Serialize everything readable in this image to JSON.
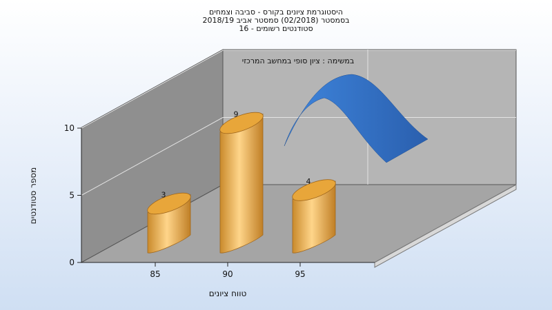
{
  "header": {
    "title_line1": "היסטוגרמת ציונים בקורס - סביבה וצמחים",
    "title_line2": "בסמסטר (02/2018) סמסטר אביב 2018/19",
    "title_line3": "סטודנטים רשומים - 16"
  },
  "colors": {
    "bar_fill": "#e8a63a",
    "curve_fill": "#2f6bb7",
    "back_wall": "#b5b5b5",
    "side_wall": "#8f8f8f",
    "floor": "#a5a5a5"
  },
  "chart_data": {
    "type": "bar",
    "title": "היסטוגרמת ציונים בקורס - סביבה וצמחים",
    "subtitle": "בסמסטר (02/2018) סמסטר אביב 2018/19 / סטודנטים רשומים - 16",
    "xlabel": "טווח ציונים",
    "ylabel": "מספר סטודנטים",
    "ylim": [
      0,
      10
    ],
    "y_ticks": [
      "0",
      "5",
      "10"
    ],
    "x_ticks": [
      "85",
      "90",
      "95"
    ],
    "categories": [
      "85",
      "90",
      "95"
    ],
    "values": [
      3,
      9,
      4
    ],
    "data_labels": [
      "3",
      "9",
      "4"
    ],
    "annotation": "במשימה : ציון סופי במחשב המרכזי",
    "overlay_curve": "normal-curve",
    "grid": true,
    "style": "3d"
  }
}
